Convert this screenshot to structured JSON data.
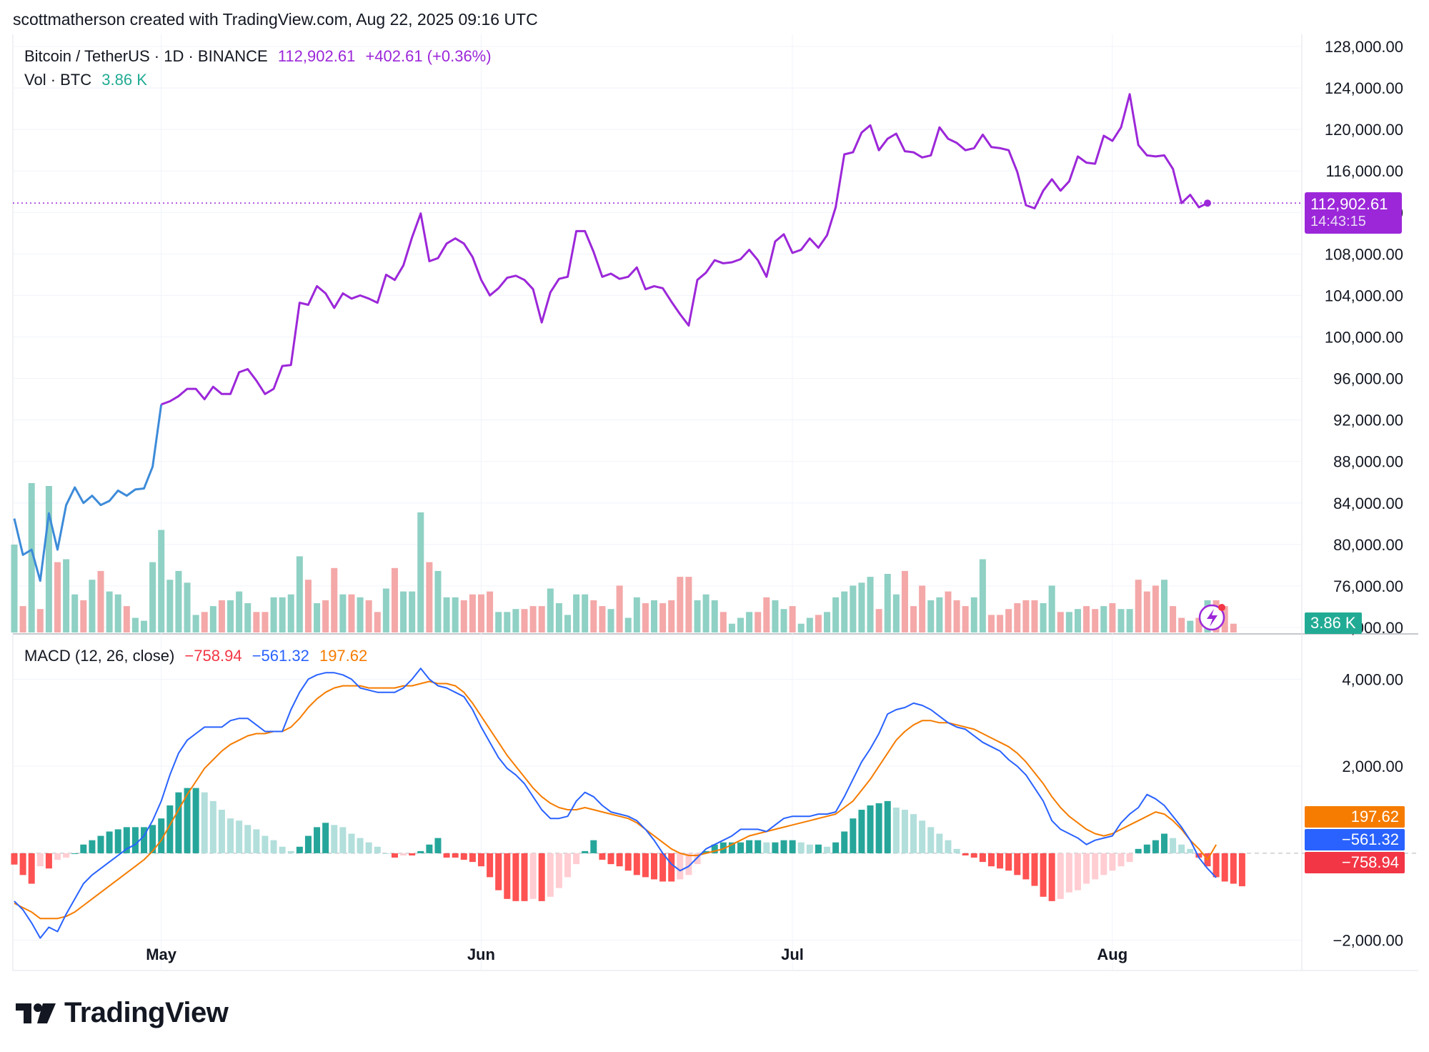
{
  "header": {
    "credit": "scottmatherson created with TradingView.com, Aug 22, 2025 09:16 UTC"
  },
  "legend": {
    "symbol": "Bitcoin / TetherUS · 1D · BINANCE",
    "price": "112,902.61",
    "change": "+402.61 (+0.36%)",
    "vol_label": "Vol · BTC",
    "vol_value": "3.86 K",
    "macd_label": "MACD (12, 26, close)",
    "macd_hist": "−758.94",
    "macd_line": "−561.32",
    "macd_signal": "197.62"
  },
  "pills": {
    "price": "112,902.61",
    "countdown": "14:43:15",
    "volume": "3.86 K",
    "signal": "197.62",
    "macd": "−561.32",
    "hist": "−758.94"
  },
  "logo": {
    "text": "TradingView"
  },
  "colors": {
    "price_blue": "#3d8bd9",
    "price_purple": "#9c27d9",
    "vol_up": "#8fd1c4",
    "vol_down": "#f4a8a8",
    "macd_line": "#2962ff",
    "signal_line": "#f57c00",
    "hist_pos_strong": "#26a69a",
    "hist_pos_weak": "#b2dfdb",
    "hist_neg_strong": "#ff5252",
    "hist_neg_weak": "#ffcdd2"
  },
  "chart_data": [
    {
      "type": "line",
      "title": "Bitcoin / TetherUS · 1D · BINANCE",
      "x_labels": [
        "May",
        "Jun",
        "Jul",
        "Aug"
      ],
      "y_ticks": [
        "128,000.00",
        "124,000.00",
        "120,000.00",
        "116,000.00",
        "112,000.00",
        "108,000.00",
        "104,000.00",
        "100,000.00",
        "96,000.00",
        "92,000.00",
        "88,000.00",
        "84,000.00",
        "80,000.00",
        "76,000.00",
        "72,000.00"
      ],
      "ylim": [
        72000,
        128000
      ],
      "last_price": 112902.61,
      "series": [
        {
          "values": [
            82500,
            79000,
            79500,
            76500,
            83000,
            79500,
            83800,
            85500,
            84000,
            84700,
            83800,
            84200,
            85200,
            84700,
            85300,
            85400,
            87500,
            93500,
            93800,
            94300,
            95000,
            95000,
            94000,
            95200,
            94500,
            94500,
            96600,
            96900,
            95800,
            94500,
            95000,
            97200,
            97300,
            103300,
            103100,
            104900,
            104200,
            102800,
            104200,
            103700,
            104000,
            103700,
            103300,
            106000,
            105500,
            106900,
            109600,
            111900,
            107300,
            107600,
            109000,
            109500,
            109000,
            107700,
            105500,
            104000,
            104700,
            105700,
            105900,
            105500,
            104600,
            101400,
            104300,
            105600,
            105800,
            110200,
            110200,
            108200,
            105800,
            106100,
            105600,
            105800,
            106700,
            104600,
            104900,
            104700,
            103400,
            102200,
            101100,
            105500,
            106200,
            107400,
            107100,
            107200,
            107500,
            108400,
            107400,
            105800,
            109200,
            109900,
            108100,
            108400,
            109500,
            108600,
            109800,
            112500,
            117600,
            117800,
            119700,
            120400,
            118000,
            119100,
            119600,
            117900,
            117800,
            117300,
            117500,
            120200,
            119100,
            118700,
            118000,
            118200,
            119500,
            118300,
            118200,
            118000,
            115900,
            112700,
            112400,
            114100,
            115200,
            114100,
            115000,
            117400,
            116800,
            116700,
            119400,
            118900,
            120200,
            123400,
            118500,
            117500,
            117400,
            117500,
            116200,
            112900,
            113700,
            112500,
            112900
          ]
        }
      ]
    },
    {
      "type": "bar",
      "title": "Vol · BTC",
      "values": [
        30,
        9,
        51,
        8,
        50,
        24,
        25,
        13,
        11,
        18,
        21,
        14,
        13,
        9,
        5,
        4,
        24,
        35,
        18,
        21,
        17,
        6,
        7,
        9,
        11,
        11,
        14,
        10,
        7,
        7,
        12,
        12,
        13,
        26,
        18,
        10,
        11,
        22,
        13,
        13,
        12,
        11,
        7,
        15,
        22,
        14,
        14,
        41,
        24,
        21,
        12,
        12,
        11,
        13,
        13,
        14,
        7,
        7,
        8,
        8,
        9,
        9,
        15,
        10,
        6,
        13,
        13,
        11,
        9,
        8,
        16,
        5,
        12,
        10,
        11,
        10,
        11,
        19,
        19,
        11,
        13,
        11,
        7,
        3,
        5,
        7,
        7,
        12,
        11,
        8,
        9,
        3,
        5,
        6,
        7,
        12,
        14,
        16,
        17,
        19,
        8,
        20,
        13,
        21,
        9,
        16,
        11,
        12,
        14,
        11,
        9,
        12,
        25,
        6,
        6,
        8,
        10,
        11,
        11,
        10,
        16,
        7,
        7,
        8,
        9,
        8,
        9,
        10,
        8,
        8,
        18,
        14,
        16,
        18,
        9,
        5,
        4,
        5,
        11,
        11,
        9,
        3
      ],
      "last_value": "3.86 K"
    },
    {
      "type": "line",
      "title": "MACD (12, 26, close)",
      "y_ticks": [
        "4,000.00",
        "2,000.00",
        "−2,000.00"
      ],
      "ylim": [
        -2400,
        4500
      ],
      "series": [
        {
          "name": "MACD",
          "values": [
            -1100,
            -1300,
            -1600,
            -1950,
            -1700,
            -1800,
            -1400,
            -1050,
            -700,
            -500,
            -350,
            -200,
            -50,
            100,
            200,
            400,
            750,
            1200,
            1800,
            2300,
            2600,
            2750,
            2900,
            2900,
            2900,
            3050,
            3100,
            3100,
            2950,
            2800,
            2800,
            2800,
            3300,
            3700,
            4000,
            4100,
            4150,
            4150,
            4100,
            4000,
            3800,
            3750,
            3700,
            3700,
            3700,
            3800,
            4000,
            4250,
            4000,
            3850,
            3800,
            3700,
            3600,
            3300,
            2900,
            2550,
            2200,
            1950,
            1800,
            1600,
            1300,
            1000,
            800,
            800,
            850,
            1200,
            1400,
            1300,
            1100,
            950,
            900,
            850,
            750,
            550,
            300,
            0,
            -250,
            -400,
            -300,
            -100,
            100,
            200,
            300,
            400,
            550,
            550,
            550,
            500,
            650,
            800,
            850,
            850,
            850,
            900,
            900,
            950,
            1300,
            1700,
            2100,
            2400,
            2750,
            3200,
            3300,
            3350,
            3450,
            3400,
            3300,
            3150,
            3000,
            2900,
            2850,
            2700,
            2550,
            2450,
            2350,
            2150,
            2000,
            1800,
            1500,
            1200,
            750,
            550,
            450,
            350,
            200,
            300,
            350,
            400,
            700,
            900,
            1050,
            1350,
            1250,
            1100,
            850,
            600,
            300,
            -100,
            -350,
            -561
          ]
        },
        {
          "name": "Signal",
          "values": [
            -1150,
            -1250,
            -1350,
            -1500,
            -1500,
            -1500,
            -1450,
            -1350,
            -1200,
            -1050,
            -900,
            -750,
            -600,
            -450,
            -300,
            -150,
            50,
            300,
            650,
            1000,
            1350,
            1650,
            1950,
            2150,
            2350,
            2500,
            2600,
            2700,
            2750,
            2750,
            2800,
            2800,
            2900,
            3100,
            3350,
            3550,
            3700,
            3800,
            3850,
            3850,
            3850,
            3800,
            3800,
            3800,
            3800,
            3850,
            3850,
            3900,
            3950,
            3900,
            3900,
            3850,
            3700,
            3450,
            3150,
            2850,
            2550,
            2250,
            2000,
            1750,
            1500,
            1300,
            1150,
            1050,
            1000,
            1000,
            1050,
            1000,
            950,
            900,
            850,
            800,
            700,
            550,
            400,
            250,
            100,
            0,
            -50,
            -50,
            0,
            50,
            100,
            200,
            300,
            400,
            450,
            500,
            550,
            600,
            650,
            700,
            750,
            800,
            850,
            900,
            1050,
            1200,
            1450,
            1700,
            2000,
            2300,
            2600,
            2800,
            2950,
            3050,
            3050,
            3000,
            3000,
            2950,
            2900,
            2850,
            2750,
            2650,
            2550,
            2450,
            2300,
            2100,
            1850,
            1600,
            1300,
            1050,
            850,
            700,
            550,
            450,
            400,
            450,
            550,
            650,
            750,
            850,
            950,
            900,
            750,
            550,
            300,
            100,
            -150,
            197.62
          ]
        }
      ],
      "histogram": [
        -260,
        -500,
        -700,
        -300,
        -350,
        -150,
        -100,
        0,
        200,
        300,
        400,
        500,
        550,
        600,
        600,
        600,
        650,
        800,
        1100,
        1400,
        1500,
        1500,
        1400,
        1200,
        1000,
        800,
        750,
        650,
        550,
        400,
        300,
        150,
        50,
        150,
        400,
        600,
        700,
        650,
        600,
        450,
        350,
        250,
        150,
        0,
        -100,
        -50,
        -50,
        50,
        200,
        350,
        -100,
        -100,
        -150,
        -200,
        -300,
        -550,
        -850,
        -1050,
        -1100,
        -1100,
        -1050,
        -1100,
        -1000,
        -800,
        -550,
        -250,
        50,
        300,
        -150,
        -250,
        -300,
        -400,
        -500,
        -550,
        -600,
        -650,
        -650,
        -600,
        -500,
        -250,
        50,
        200,
        250,
        250,
        250,
        300,
        300,
        250,
        250,
        300,
        300,
        250,
        200,
        200,
        150,
        250,
        500,
        800,
        1000,
        1100,
        1150,
        1200,
        1050,
        1000,
        900,
        750,
        600,
        450,
        300,
        100,
        -50,
        -100,
        -200,
        -300,
        -350,
        -400,
        -500,
        -600,
        -750,
        -1000,
        -1100,
        -1050,
        -900,
        -850,
        -700,
        -600,
        -500,
        -400,
        -300,
        -200,
        100,
        200,
        300,
        450,
        350,
        200,
        100,
        -100,
        -300,
        -550,
        -650,
        -700,
        -758.94
      ]
    }
  ]
}
